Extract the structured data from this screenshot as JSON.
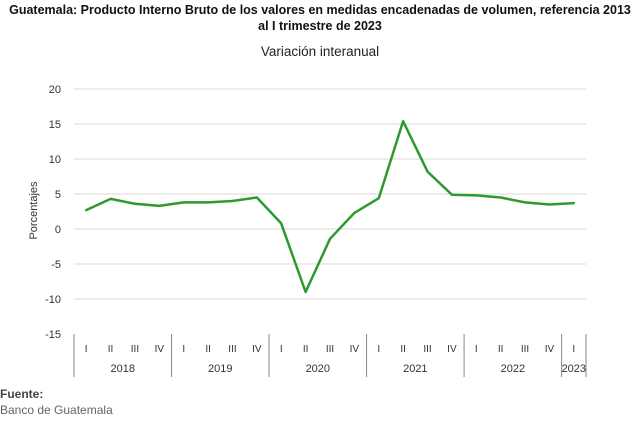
{
  "title_line1": "Guatemala: Producto Interno Bruto de los valores en medidas encadenadas  de volumen, referencia 2013",
  "title_line2": "al I trimestre de 2023",
  "subtitle": "Variación interanual",
  "footer": {
    "label": "Fuente:",
    "source": "Banco de Guatemala"
  },
  "colors": {
    "line": "#2e9a2e",
    "grid": "#d9d9d9",
    "axis": "#888888"
  },
  "chart_data": {
    "type": "line",
    "title": "Variación interanual",
    "ylabel": "Porcentajes",
    "ylim": [
      -15,
      20
    ],
    "yticks": [
      20,
      15,
      10,
      5,
      0,
      -5,
      -10,
      -15
    ],
    "grid": true,
    "x": [
      "2018-I",
      "2018-II",
      "2018-III",
      "2018-IV",
      "2019-I",
      "2019-II",
      "2019-III",
      "2019-IV",
      "2020-I",
      "2020-II",
      "2020-III",
      "2020-IV",
      "2021-I",
      "2021-II",
      "2021-III",
      "2021-IV",
      "2022-I",
      "2022-II",
      "2022-III",
      "2022-IV",
      "2023-I"
    ],
    "quarters": [
      "I",
      "II",
      "III",
      "IV",
      "I",
      "II",
      "III",
      "IV",
      "I",
      "II",
      "III",
      "IV",
      "I",
      "II",
      "III",
      "IV",
      "I",
      "II",
      "III",
      "IV",
      "I"
    ],
    "years": [
      {
        "label": "2018",
        "span": 4
      },
      {
        "label": "2019",
        "span": 4
      },
      {
        "label": "2020",
        "span": 4
      },
      {
        "label": "2021",
        "span": 4
      },
      {
        "label": "2022",
        "span": 4
      },
      {
        "label": "2023",
        "span": 1
      }
    ],
    "series": [
      {
        "values": [
          2.7,
          4.3,
          3.6,
          3.3,
          3.8,
          3.8,
          4.0,
          4.5,
          0.8,
          -9.0,
          -1.4,
          2.3,
          4.4,
          15.4,
          8.2,
          4.9,
          4.8,
          4.5,
          3.8,
          3.5,
          3.7
        ]
      }
    ]
  }
}
